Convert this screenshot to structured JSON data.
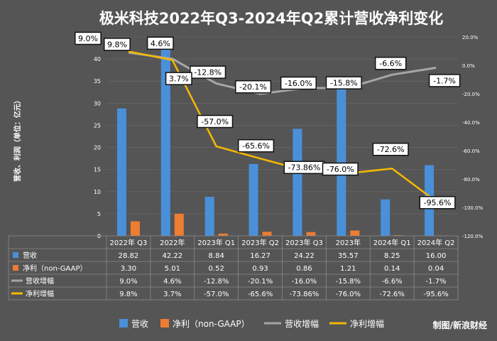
{
  "chart_data": {
    "type": "bar+line",
    "title": "极米科技2022年Q3-2024年Q2累计营收净利变化",
    "ylabel": "营收、利润（单位：亿元）",
    "categories": [
      "2022年 Q3",
      "2022年",
      "2023年 Q1",
      "2023年 Q2",
      "2023年 Q3",
      "2023年",
      "2024年 Q1",
      "2024年 Q2"
    ],
    "left_axis": {
      "min": 0,
      "max": 45,
      "step": 5
    },
    "right_axis": {
      "min": -120,
      "max": 20,
      "step": 20,
      "suffix": "%"
    },
    "series": [
      {
        "name": "营收",
        "kind": "bar",
        "axis": "left",
        "color": "#4A90D9",
        "values": [
          28.82,
          42.22,
          8.84,
          16.27,
          24.22,
          35.57,
          8.25,
          16.0
        ],
        "table_values": [
          "28.82",
          "42.22",
          "8.84",
          "16.27",
          "24.22",
          "35.57",
          "8.25",
          "16.00"
        ]
      },
      {
        "name": "净利（non-GAAP）",
        "kind": "bar",
        "axis": "left",
        "color": "#ED7D31",
        "values": [
          3.3,
          5.01,
          0.52,
          0.93,
          0.86,
          1.21,
          0.14,
          0.04
        ],
        "table_values": [
          "3.30",
          "5.01",
          "0.52",
          "0.93",
          "0.86",
          "1.21",
          "0.14",
          "0.04"
        ]
      },
      {
        "name": "营收增幅",
        "kind": "line",
        "axis": "right",
        "color": "#A6A6A6",
        "values": [
          9.0,
          4.6,
          -12.8,
          -20.1,
          -16.0,
          -15.8,
          -6.6,
          -1.7
        ],
        "table_values": [
          "9.0%",
          "4.6%",
          "-12.8%",
          "-20.1%",
          "-16.0%",
          "-15.8%",
          "-6.6%",
          "-1.7%"
        ]
      },
      {
        "name": "净利增幅",
        "kind": "line",
        "axis": "right",
        "color": "#F5B800",
        "values": [
          9.8,
          3.7,
          -57.0,
          -65.6,
          -73.86,
          -76.0,
          -72.6,
          -95.6
        ],
        "table_values": [
          "9.8%",
          "3.7%",
          "-57.0%",
          "-65.6%",
          "-73.86%",
          "-76.0%",
          "-72.6%",
          "-95.6%"
        ]
      }
    ],
    "line_labels": {
      "营收增幅": [
        "9.0%",
        "4.6%",
        "-12.8%",
        "-20.1%",
        "-16.0%",
        "-15.8%",
        "-6.6%",
        "-1.7%"
      ],
      "净利增幅": [
        "9.8%",
        "3.7%",
        "-57.0%",
        "-65.6%",
        "-73.86%",
        "-76.0%",
        "-72.6%",
        "-95.6%"
      ]
    },
    "table_row_labels": [
      "营收",
      "净利（non-GAAP）",
      "营收增幅",
      "净利增幅"
    ],
    "legend": [
      "营收",
      "净利（non-GAAP）",
      "营收增幅",
      "净利增幅"
    ],
    "legend_position": "bottom",
    "grid": true,
    "credit": "制图/新浪财经"
  }
}
